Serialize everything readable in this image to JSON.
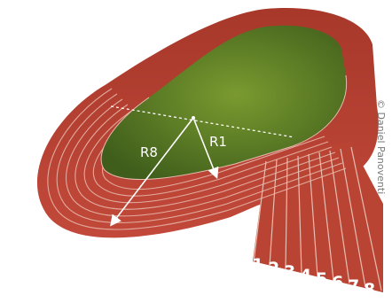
{
  "labels": {
    "radius_outer": "R8",
    "radius_inner": "R1"
  },
  "lanes": [
    "1",
    "2",
    "3",
    "4",
    "5",
    "6",
    "7",
    "8"
  ],
  "credit": "© Daniel Panoventi",
  "colors": {
    "track": "#b5402e",
    "track_dark": "#8f2e20",
    "infield": "#4d6e24",
    "infield_light": "#6c8a2c",
    "lane_line": "#e7b9ad",
    "arrow": "#ffffff"
  }
}
